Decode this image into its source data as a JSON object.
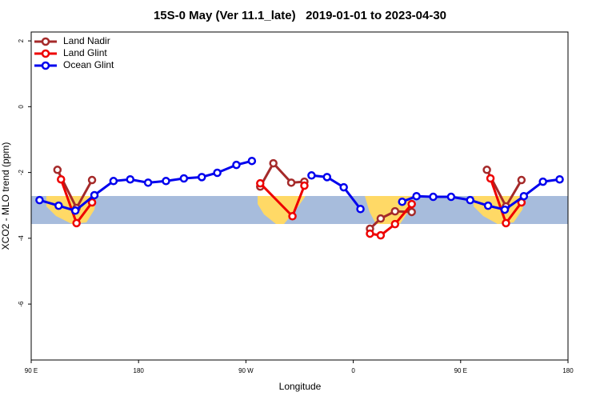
{
  "chart_data": {
    "type": "line",
    "title": "15S-0 May (Ver 11.1_late)   2019-01-01 to 2023-04-30",
    "x_label": "Longitude",
    "y_label": "XCO2 - MLO trend (ppm)",
    "xlim": [
      90,
      540
    ],
    "ylim": [
      -7.7,
      2.27
    ],
    "xticks": [
      {
        "value": 90,
        "label": "90 E"
      },
      180,
      {
        "value": 270,
        "label": "90 W"
      },
      {
        "value": 360,
        "label": "0"
      },
      {
        "value": 450,
        "label": "90 E"
      },
      {
        "value": 540,
        "label": "180"
      }
    ],
    "yticks": [
      2,
      0,
      -2,
      -4,
      -6
    ],
    "legend": "top-left",
    "series": [
      {
        "name": "Land Nadir",
        "color": "#a52a2a",
        "x": [
          112,
          128,
          141,
          null,
          282,
          293,
          308,
          319,
          null,
          374,
          383,
          395,
          409,
          null,
          472,
          488,
          501
        ],
        "values": [
          -1.92,
          -3.08,
          -2.23,
          null,
          -2.43,
          -1.72,
          -2.31,
          -2.28,
          null,
          -3.71,
          -3.4,
          -3.18,
          -3.2,
          null,
          -1.92,
          -3.03,
          -2.23
        ]
      },
      {
        "name": "Land Glint",
        "color": "#ee0000",
        "x": [
          115,
          128,
          141,
          null,
          282,
          309,
          319,
          null,
          374,
          383,
          395,
          409,
          null,
          475,
          488,
          501
        ],
        "values": [
          -2.21,
          -3.54,
          -2.91,
          null,
          -2.33,
          -3.33,
          -2.4,
          null,
          -3.86,
          -3.91,
          -3.57,
          -2.96,
          null,
          -2.18,
          -3.54,
          -2.91
        ]
      },
      {
        "name": "Ocean Glint",
        "color": "#0000ee",
        "x": [
          97,
          113,
          127,
          143,
          159,
          173,
          188,
          203,
          218,
          233,
          246,
          262,
          275,
          null,
          325,
          338,
          352,
          366,
          null,
          401,
          413,
          427,
          442,
          458,
          473,
          487,
          503,
          519,
          533
        ],
        "values": [
          -2.84,
          -3.01,
          -3.16,
          -2.69,
          -2.26,
          -2.21,
          -2.31,
          -2.26,
          -2.18,
          -2.14,
          -2.01,
          -1.77,
          -1.65,
          null,
          -2.09,
          -2.14,
          -2.45,
          -3.11,
          null,
          -2.89,
          -2.72,
          -2.74,
          -2.74,
          -2.84,
          -3.01,
          -3.13,
          -2.72,
          -2.28,
          -2.21
        ]
      }
    ]
  }
}
